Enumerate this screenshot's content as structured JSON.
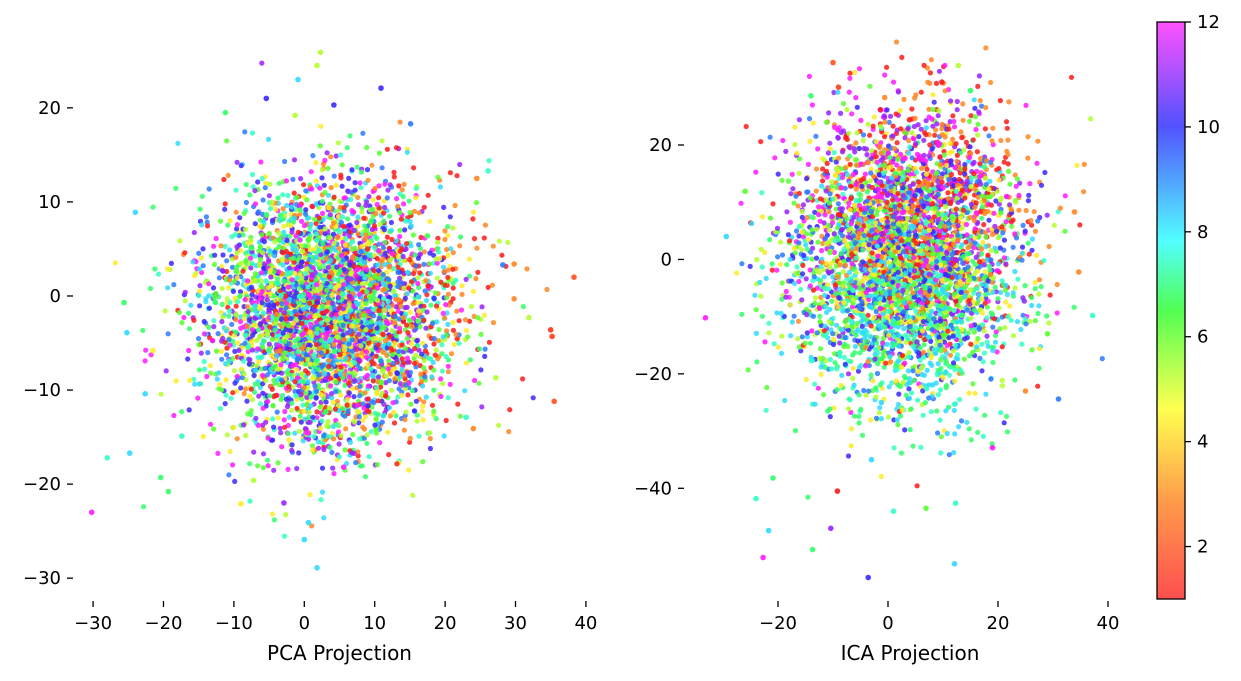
{
  "chart_data": [
    {
      "type": "scatter",
      "title": "",
      "xlabel": "PCA Projection",
      "ylabel": "",
      "xlim": [
        -32,
        42
      ],
      "ylim": [
        -32,
        27
      ],
      "xticks": [
        -30,
        -20,
        -10,
        0,
        10,
        20,
        30,
        40
      ],
      "yticks": [
        -30,
        -20,
        -10,
        0,
        10,
        20
      ],
      "grid": false,
      "color_by": "label (1–12, hsv colormap)",
      "point_count": "≈5000",
      "distribution": "roughly isotropic cloud centered near (3, -2), spread ≈ 8 in x and 7 in y, outliers to x≈38",
      "points": [
        [
          38.3,
          2.0,
          1.5
        ],
        [
          35.5,
          -11.2,
          1.5
        ],
        [
          35.0,
          -3.6,
          1.2
        ],
        [
          35.2,
          -4.3,
          1.3
        ],
        [
          -30.2,
          -23.0,
          12
        ],
        [
          -28,
          -17.2,
          7
        ],
        [
          1.8,
          -28.9,
          8
        ],
        [
          0.0,
          -25.9,
          8
        ],
        [
          0.6,
          -24.1,
          8
        ],
        [
          2.3,
          25.9,
          4
        ],
        [
          1.8,
          24.5,
          4
        ],
        [
          -0.9,
          23.0,
          8
        ],
        [
          -5.4,
          21.0,
          10
        ],
        [
          10.9,
          22.1,
          10
        ],
        [
          -25.6,
          -0.7,
          6
        ],
        [
          -25.2,
          -3.9,
          8
        ],
        [
          -24.8,
          -16.7,
          8
        ],
        [
          -24.0,
          8.9,
          8
        ],
        [
          -22.6,
          -10.4,
          8
        ],
        [
          -21.5,
          -5.8,
          3
        ],
        [
          -20.4,
          -19.3,
          6
        ],
        [
          -19.3,
          -20.8,
          6
        ],
        [
          -17.4,
          -14.9,
          7
        ],
        [
          -9.0,
          -22.1,
          3
        ],
        [
          -7.2,
          -19.6,
          4
        ],
        [
          -2.9,
          -22.0,
          11
        ],
        [
          5.6,
          -18.2,
          12
        ],
        [
          26.1,
          13.3,
          7
        ],
        [
          24.5,
          12.5,
          2
        ],
        [
          29.8,
          3.4,
          2
        ],
        [
          28.2,
          3.3,
          9
        ],
        [
          27.2,
          -8.7,
          4
        ],
        [
          31.9,
          -2.3,
          4
        ],
        [
          29.8,
          -0.3,
          2
        ],
        [
          24.0,
          -14.1,
          2
        ],
        [
          23.0,
          -12.9,
          7
        ],
        [
          -1.3,
          19.2,
          4
        ],
        [
          4.2,
          20.3,
          10
        ],
        [
          -11.2,
          19.5,
          6
        ],
        [
          15.1,
          18.3,
          9
        ]
      ]
    },
    {
      "type": "scatter",
      "title": "",
      "xlabel": "ICA Projection",
      "ylabel": "",
      "xlim": [
        -36,
        44
      ],
      "ylim": [
        -59,
        38
      ],
      "xticks": [
        -20,
        0,
        20,
        40
      ],
      "yticks": [
        -40,
        -20,
        0,
        20
      ],
      "grid": false,
      "color_by": "label (1–12, hsv colormap)",
      "point_count": "≈5000",
      "distribution": "tilted cloud centered near (3, 0), spread ≈ 10 in x and 12 in y, red/orange shifted upward, cyan/teal shifted downward",
      "points": [
        [
          -10.0,
          34.4,
          1.5
        ],
        [
          -9.0,
          30.1,
          1.3
        ],
        [
          -9.2,
          -40.5,
          1
        ],
        [
          -0.6,
          28.3,
          2
        ],
        [
          -3.6,
          -55.6,
          10
        ],
        [
          -10.4,
          -47.0,
          11
        ],
        [
          -13.7,
          -50.7,
          6
        ],
        [
          -22.7,
          -52.1,
          12
        ],
        [
          12.1,
          -53.2,
          8
        ],
        [
          12.3,
          -42.6,
          7
        ],
        [
          6.9,
          -43.5,
          5
        ],
        [
          -21.7,
          -47.4,
          8
        ],
        [
          37.2,
          -9.8,
          7
        ],
        [
          34.7,
          -2.2,
          2
        ],
        [
          33.9,
          8.3,
          2
        ],
        [
          31.0,
          -24.4,
          9
        ],
        [
          -33.2,
          -10.2,
          12
        ],
        [
          -29.4,
          4.0,
          8
        ],
        [
          -20.9,
          -38.2,
          6
        ],
        [
          -14.0,
          28.6,
          6
        ],
        [
          -1.2,
          -25.0,
          8
        ],
        [
          3.9,
          24.4,
          1
        ],
        [
          12.8,
          33.9,
          4
        ],
        [
          19.0,
          -32.9,
          12
        ],
        [
          25.0,
          -23.0,
          2
        ],
        [
          29.0,
          -13.0,
          5
        ],
        [
          -24.0,
          -41.8,
          7
        ],
        [
          9.8,
          31.0,
          1
        ],
        [
          1.0,
          -44.0,
          7
        ],
        [
          -3.0,
          -35.0,
          8
        ],
        [
          15.0,
          29.5,
          6
        ],
        [
          -26.0,
          11.9,
          5
        ]
      ]
    }
  ],
  "colorbar": {
    "ticks": [
      2,
      4,
      6,
      8,
      10,
      12
    ],
    "tick_labels": [
      "2",
      "4",
      "6",
      "8",
      "10",
      "12"
    ],
    "range": [
      1,
      12
    ],
    "colormap": "hsv",
    "stops": [
      "#ff3030",
      "#ff8a2a",
      "#ffff33",
      "#33ff33",
      "#33ffff",
      "#3333ff",
      "#ff33ff"
    ]
  }
}
